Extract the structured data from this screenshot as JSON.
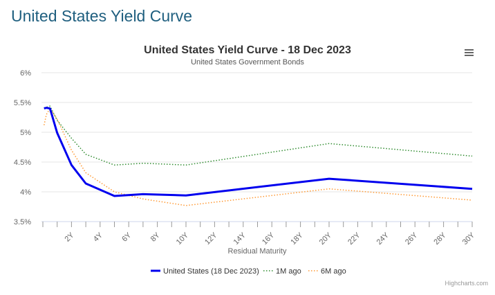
{
  "page_title": "United States Yield Curve",
  "menu_icon": "hamburger-menu-icon",
  "credits": "Highcharts.com",
  "chart_data": {
    "type": "line",
    "title": "United States Yield Curve - 18 Dec 2023",
    "subtitle": "United States Government Bonds",
    "xlabel": "Residual Maturity",
    "ylabel": "",
    "xlim": [
      0,
      30
    ],
    "ylim": [
      3.5,
      6
    ],
    "grid": true,
    "legend_position": "bottom",
    "x_tick_labels": [
      "2Y",
      "4Y",
      "6Y",
      "8Y",
      "10Y",
      "12Y",
      "14Y",
      "16Y",
      "18Y",
      "20Y",
      "22Y",
      "24Y",
      "26Y",
      "28Y",
      "30Y"
    ],
    "y_tick_labels": [
      "3.5%",
      "4%",
      "4.5%",
      "5%",
      "5.5%",
      "6%"
    ],
    "x": [
      0.08,
      0.25,
      0.5,
      1,
      2,
      3,
      5,
      7,
      10,
      20,
      30
    ],
    "series": [
      {
        "name": "United States (18 Dec 2023)",
        "color": "#0000ee",
        "style": "solid",
        "values": [
          5.4,
          5.41,
          5.4,
          4.99,
          4.45,
          4.14,
          3.93,
          3.96,
          3.94,
          4.22,
          4.05
        ]
      },
      {
        "name": "1M ago",
        "color": "#2e8b2e",
        "style": "dotted",
        "values": [
          5.41,
          5.42,
          5.44,
          5.2,
          4.9,
          4.63,
          4.45,
          4.48,
          4.45,
          4.81,
          4.6
        ]
      },
      {
        "name": "6M ago",
        "color": "#ff9933",
        "style": "dotted",
        "values": [
          5.12,
          5.3,
          5.4,
          5.22,
          4.7,
          4.32,
          4.0,
          3.88,
          3.77,
          4.05,
          3.86
        ]
      }
    ]
  }
}
